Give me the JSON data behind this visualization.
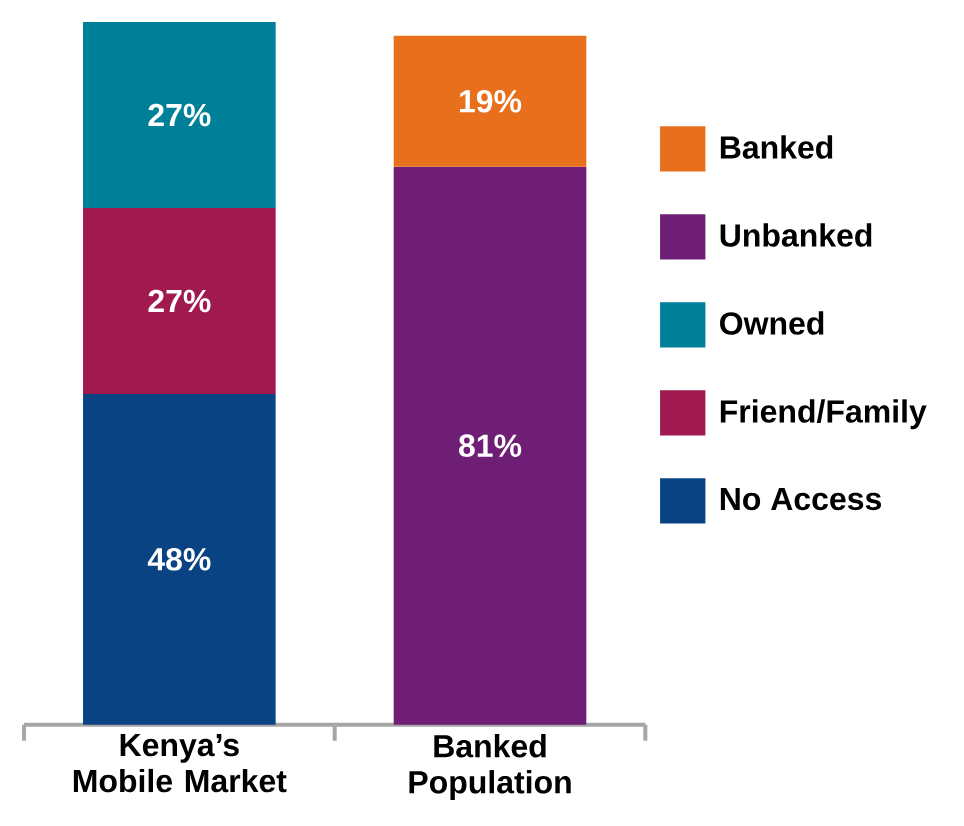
{
  "chart_data": {
    "type": "bar",
    "stacked": true,
    "categories": [
      "Kenya’s Mobile Market",
      "Banked Population"
    ],
    "legend": "right",
    "series": [
      {
        "name": "No Access",
        "color": "#0a4384",
        "values": [
          48,
          null
        ],
        "value_labels": [
          "48%",
          null
        ]
      },
      {
        "name": "Friend/Family",
        "color": "#a0194f",
        "values": [
          27,
          null
        ],
        "value_labels": [
          "27%",
          null
        ]
      },
      {
        "name": "Owned",
        "color": "#007f98",
        "values": [
          27,
          null
        ],
        "value_labels": [
          "27%",
          null
        ]
      },
      {
        "name": "Unbanked",
        "color": "#6e1e74",
        "values": [
          null,
          81
        ],
        "value_labels": [
          null,
          "81%"
        ]
      },
      {
        "name": "Banked",
        "color": "#e8701c",
        "values": [
          null,
          19
        ],
        "value_labels": [
          null,
          "19%"
        ]
      }
    ]
  }
}
